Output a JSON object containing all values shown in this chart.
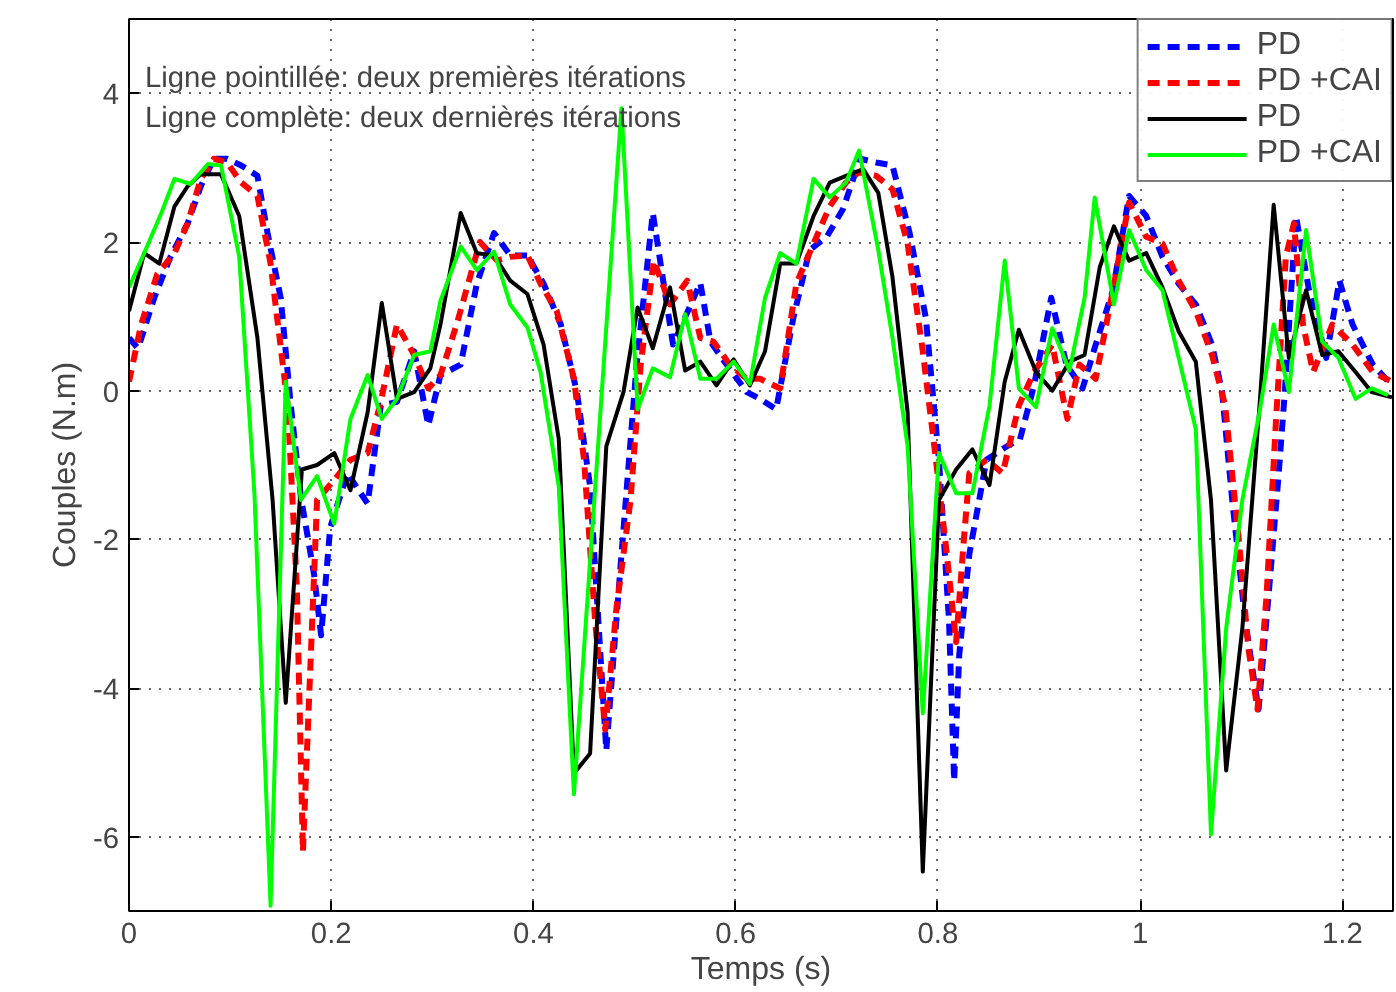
{
  "chart_data": {
    "type": "line",
    "xlabel": "Temps (s)",
    "ylabel": "Couples (N.m)",
    "annotations": [
      "Ligne pointillée: deux premières itérations",
      "Ligne complète: deux dernières itérations"
    ],
    "xlim": [
      0,
      1.25
    ],
    "ylim": [
      -7,
      5
    ],
    "xticks": [
      0,
      0.2,
      0.4,
      0.6,
      0.8,
      1,
      1.2
    ],
    "yticks": [
      -6,
      -4,
      -2,
      0,
      2,
      4
    ],
    "grid": true,
    "legend": "top right",
    "marker": "none",
    "series": [
      {
        "name": "PD",
        "color": "#0000ff",
        "line_style": "dashed",
        "x": [
          0,
          0.009,
          0.025,
          0.041,
          0.058,
          0.071,
          0.084,
          0.097,
          0.111,
          0.127,
          0.137,
          0.15,
          0.16,
          0.17,
          0.183,
          0.19,
          0.199,
          0.216,
          0.236,
          0.249,
          0.265,
          0.282,
          0.296,
          0.308,
          0.328,
          0.344,
          0.361,
          0.377,
          0.394,
          0.41,
          0.427,
          0.443,
          0.456,
          0.472,
          0.486,
          0.502,
          0.518,
          0.538,
          0.565,
          0.575,
          0.591,
          0.611,
          0.624,
          0.64,
          0.657,
          0.673,
          0.69,
          0.706,
          0.723,
          0.739,
          0.755,
          0.772,
          0.788,
          0.801,
          0.811,
          0.816,
          0.821,
          0.831,
          0.848,
          0.868,
          0.881,
          0.895,
          0.912,
          0.927,
          0.943,
          0.956,
          0.973,
          0.989,
          1.006,
          1.022,
          1.038,
          1.055,
          1.071,
          1.081,
          1.091,
          1.104,
          1.117,
          1.127,
          1.137,
          1.143,
          1.154,
          1.167,
          1.184,
          1.197,
          1.21,
          1.23,
          1.249
        ],
        "values": [
          0.71,
          0.57,
          1.25,
          1.8,
          2.25,
          2.75,
          3.12,
          3.12,
          3.03,
          2.89,
          2.12,
          1.25,
          -0.2,
          -1.43,
          -2.47,
          -3.29,
          -1.84,
          -1.11,
          -1.52,
          -0.2,
          -0.15,
          0.53,
          -0.47,
          0.21,
          0.35,
          1.44,
          2.12,
          1.82,
          1.82,
          1.44,
          0.89,
          -0.02,
          -1.29,
          -4.84,
          -2.38,
          0.35,
          2.39,
          0.62,
          1.45,
          0.66,
          0.35,
          -0.02,
          -0.11,
          -0.25,
          0.98,
          1.89,
          2.07,
          2.44,
          3.12,
          3.07,
          3.03,
          2.12,
          0.98,
          -0.93,
          -3.11,
          -5.25,
          -3.56,
          -2.2,
          -0.93,
          -0.75,
          -0.66,
          0.07,
          1.25,
          0.35,
          0.03,
          0.62,
          1.35,
          2.62,
          2.35,
          1.8,
          1.44,
          1.16,
          0.62,
          -0.02,
          -1.47,
          -3.11,
          -4.29,
          -2.75,
          -1.11,
          -0.02,
          2.35,
          1.35,
          0.44,
          1.48,
          0.89,
          0.35,
          0.07
        ]
      },
      {
        "name": "PD +CAI",
        "color": "#ff0000",
        "line_style": "dashed",
        "x": [
          0,
          0.012,
          0.028,
          0.045,
          0.058,
          0.071,
          0.084,
          0.097,
          0.111,
          0.127,
          0.14,
          0.157,
          0.166,
          0.172,
          0.186,
          0.203,
          0.219,
          0.236,
          0.249,
          0.265,
          0.282,
          0.296,
          0.308,
          0.324,
          0.347,
          0.364,
          0.377,
          0.394,
          0.407,
          0.423,
          0.44,
          0.45,
          0.461,
          0.471,
          0.482,
          0.496,
          0.506,
          0.519,
          0.535,
          0.552,
          0.565,
          0.578,
          0.594,
          0.611,
          0.624,
          0.644,
          0.66,
          0.677,
          0.693,
          0.709,
          0.722,
          0.739,
          0.755,
          0.77,
          0.785,
          0.798,
          0.808,
          0.818,
          0.825,
          0.831,
          0.848,
          0.864,
          0.88,
          0.895,
          0.913,
          0.928,
          0.94,
          0.956,
          0.973,
          0.989,
          1.006,
          1.022,
          1.038,
          1.055,
          1.071,
          1.084,
          1.097,
          1.107,
          1.116,
          1.125,
          1.134,
          1.144,
          1.152,
          1.161,
          1.171,
          1.19,
          1.21,
          1.23,
          1.249
        ],
        "values": [
          0.12,
          0.89,
          1.57,
          1.85,
          2.25,
          2.85,
          3.12,
          3.07,
          2.8,
          2.62,
          1.71,
          -0.2,
          -2.65,
          -6.2,
          -1.47,
          -1.2,
          -0.93,
          -0.84,
          -0.15,
          0.89,
          0.48,
          0.03,
          0.21,
          0.89,
          2.0,
          1.75,
          1.8,
          1.82,
          1.44,
          1.07,
          0.16,
          -0.93,
          -3.11,
          -4.56,
          -2.93,
          -1.47,
          0.35,
          1.75,
          1.16,
          1.48,
          0.71,
          0.66,
          0.35,
          0.16,
          0.16,
          0.03,
          1.44,
          1.98,
          2.48,
          2.8,
          2.94,
          2.89,
          2.71,
          1.98,
          0.53,
          -0.93,
          -2.11,
          -3.38,
          -2.11,
          -1.11,
          -0.93,
          -1.11,
          -0.2,
          0.25,
          0.62,
          -0.38,
          0.35,
          0.16,
          1.35,
          2.53,
          2.07,
          1.98,
          1.48,
          1.07,
          0.48,
          -0.2,
          -1.93,
          -3.47,
          -4.29,
          -2.75,
          -0.47,
          1.8,
          2.25,
          0.89,
          0.25,
          0.89,
          0.62,
          0.25,
          0.12
        ]
      },
      {
        "name": "PD",
        "color": "#000000",
        "line_style": "solid",
        "x": [
          0,
          0.015,
          0.03,
          0.045,
          0.058,
          0.071,
          0.091,
          0.109,
          0.127,
          0.142,
          0.155,
          0.171,
          0.186,
          0.203,
          0.219,
          0.236,
          0.25,
          0.265,
          0.282,
          0.298,
          0.308,
          0.328,
          0.344,
          0.361,
          0.377,
          0.394,
          0.41,
          0.425,
          0.44,
          0.456,
          0.472,
          0.489,
          0.503,
          0.518,
          0.535,
          0.55,
          0.565,
          0.581,
          0.598,
          0.614,
          0.629,
          0.644,
          0.66,
          0.677,
          0.693,
          0.709,
          0.726,
          0.741,
          0.755,
          0.77,
          0.785,
          0.801,
          0.818,
          0.834,
          0.851,
          0.866,
          0.88,
          0.897,
          0.913,
          0.93,
          0.945,
          0.96,
          0.974,
          0.989,
          1.006,
          1.022,
          1.038,
          1.055,
          1.07,
          1.085,
          1.101,
          1.118,
          1.132,
          1.147,
          1.164,
          1.18,
          1.196,
          1.213,
          1.229,
          1.249
        ],
        "values": [
          1.07,
          1.85,
          1.71,
          2.48,
          2.75,
          2.91,
          2.91,
          2.35,
          0.71,
          -1.47,
          -4.2,
          -1.06,
          -1.0,
          -0.84,
          -1.34,
          -0.29,
          1.18,
          -0.11,
          -0.02,
          0.3,
          0.89,
          2.39,
          1.85,
          1.82,
          1.48,
          1.3,
          0.62,
          -0.65,
          -5.15,
          -4.88,
          -0.75,
          -0.02,
          1.12,
          0.57,
          1.39,
          0.27,
          0.39,
          0.07,
          0.42,
          0.07,
          0.53,
          1.71,
          1.71,
          2.35,
          2.8,
          2.89,
          2.98,
          2.66,
          1.53,
          -0.29,
          -6.47,
          -1.47,
          -1.06,
          -0.79,
          -1.27,
          0.12,
          0.82,
          0.25,
          0,
          0.39,
          0.48,
          1.66,
          2.21,
          1.75,
          1.85,
          1.39,
          0.8,
          0.39,
          -1.47,
          -5.11,
          -3.2,
          -0.2,
          2.5,
          0.44,
          1.35,
          0.48,
          0.53,
          0.25,
          -0.02,
          -0.09
        ]
      },
      {
        "name": "PD +CAI",
        "color": "#00ff00",
        "line_style": "solid",
        "x": [
          0,
          0.015,
          0.032,
          0.045,
          0.061,
          0.078,
          0.091,
          0.109,
          0.124,
          0.14,
          0.155,
          0.17,
          0.186,
          0.203,
          0.219,
          0.236,
          0.25,
          0.265,
          0.282,
          0.298,
          0.308,
          0.328,
          0.344,
          0.361,
          0.377,
          0.394,
          0.407,
          0.425,
          0.44,
          0.487,
          0.503,
          0.518,
          0.535,
          0.55,
          0.565,
          0.581,
          0.598,
          0.614,
          0.629,
          0.644,
          0.66,
          0.677,
          0.693,
          0.709,
          0.722,
          0.741,
          0.755,
          0.77,
          0.785,
          0.801,
          0.818,
          0.834,
          0.851,
          0.866,
          0.88,
          0.897,
          0.913,
          0.93,
          0.945,
          0.955,
          0.974,
          0.989,
          1.006,
          1.022,
          1.055,
          1.07,
          1.085,
          1.101,
          1.118,
          1.132,
          1.147,
          1.164,
          1.18,
          1.196,
          1.213,
          1.229,
          1.245
        ],
        "values": [
          1.39,
          1.85,
          2.39,
          2.85,
          2.78,
          3.05,
          3.03,
          1.8,
          -1.38,
          -6.93,
          0.12,
          -1.47,
          -1.15,
          -1.79,
          -0.38,
          0.21,
          -0.38,
          -0.11,
          0.48,
          0.53,
          1.21,
          1.94,
          1.62,
          1.87,
          1.16,
          0.85,
          0.25,
          -1.29,
          -5.43,
          3.8,
          -0.25,
          0.3,
          0.18,
          1.03,
          0.16,
          0.16,
          0.39,
          0.09,
          1.25,
          1.85,
          1.71,
          2.85,
          2.6,
          2.8,
          3.23,
          1.89,
          0.71,
          -0.75,
          -4.34,
          -0.84,
          -1.38,
          -1.38,
          -0.2,
          1.75,
          0.03,
          -0.22,
          0.84,
          0.27,
          1.25,
          2.6,
          1.16,
          2.16,
          1.62,
          1.35,
          -0.52,
          -5.97,
          -3.2,
          -1.47,
          -0.29,
          0.89,
          -0.02,
          2.16,
          0.66,
          0.44,
          -0.11,
          0.03,
          -0.06
        ]
      }
    ]
  }
}
